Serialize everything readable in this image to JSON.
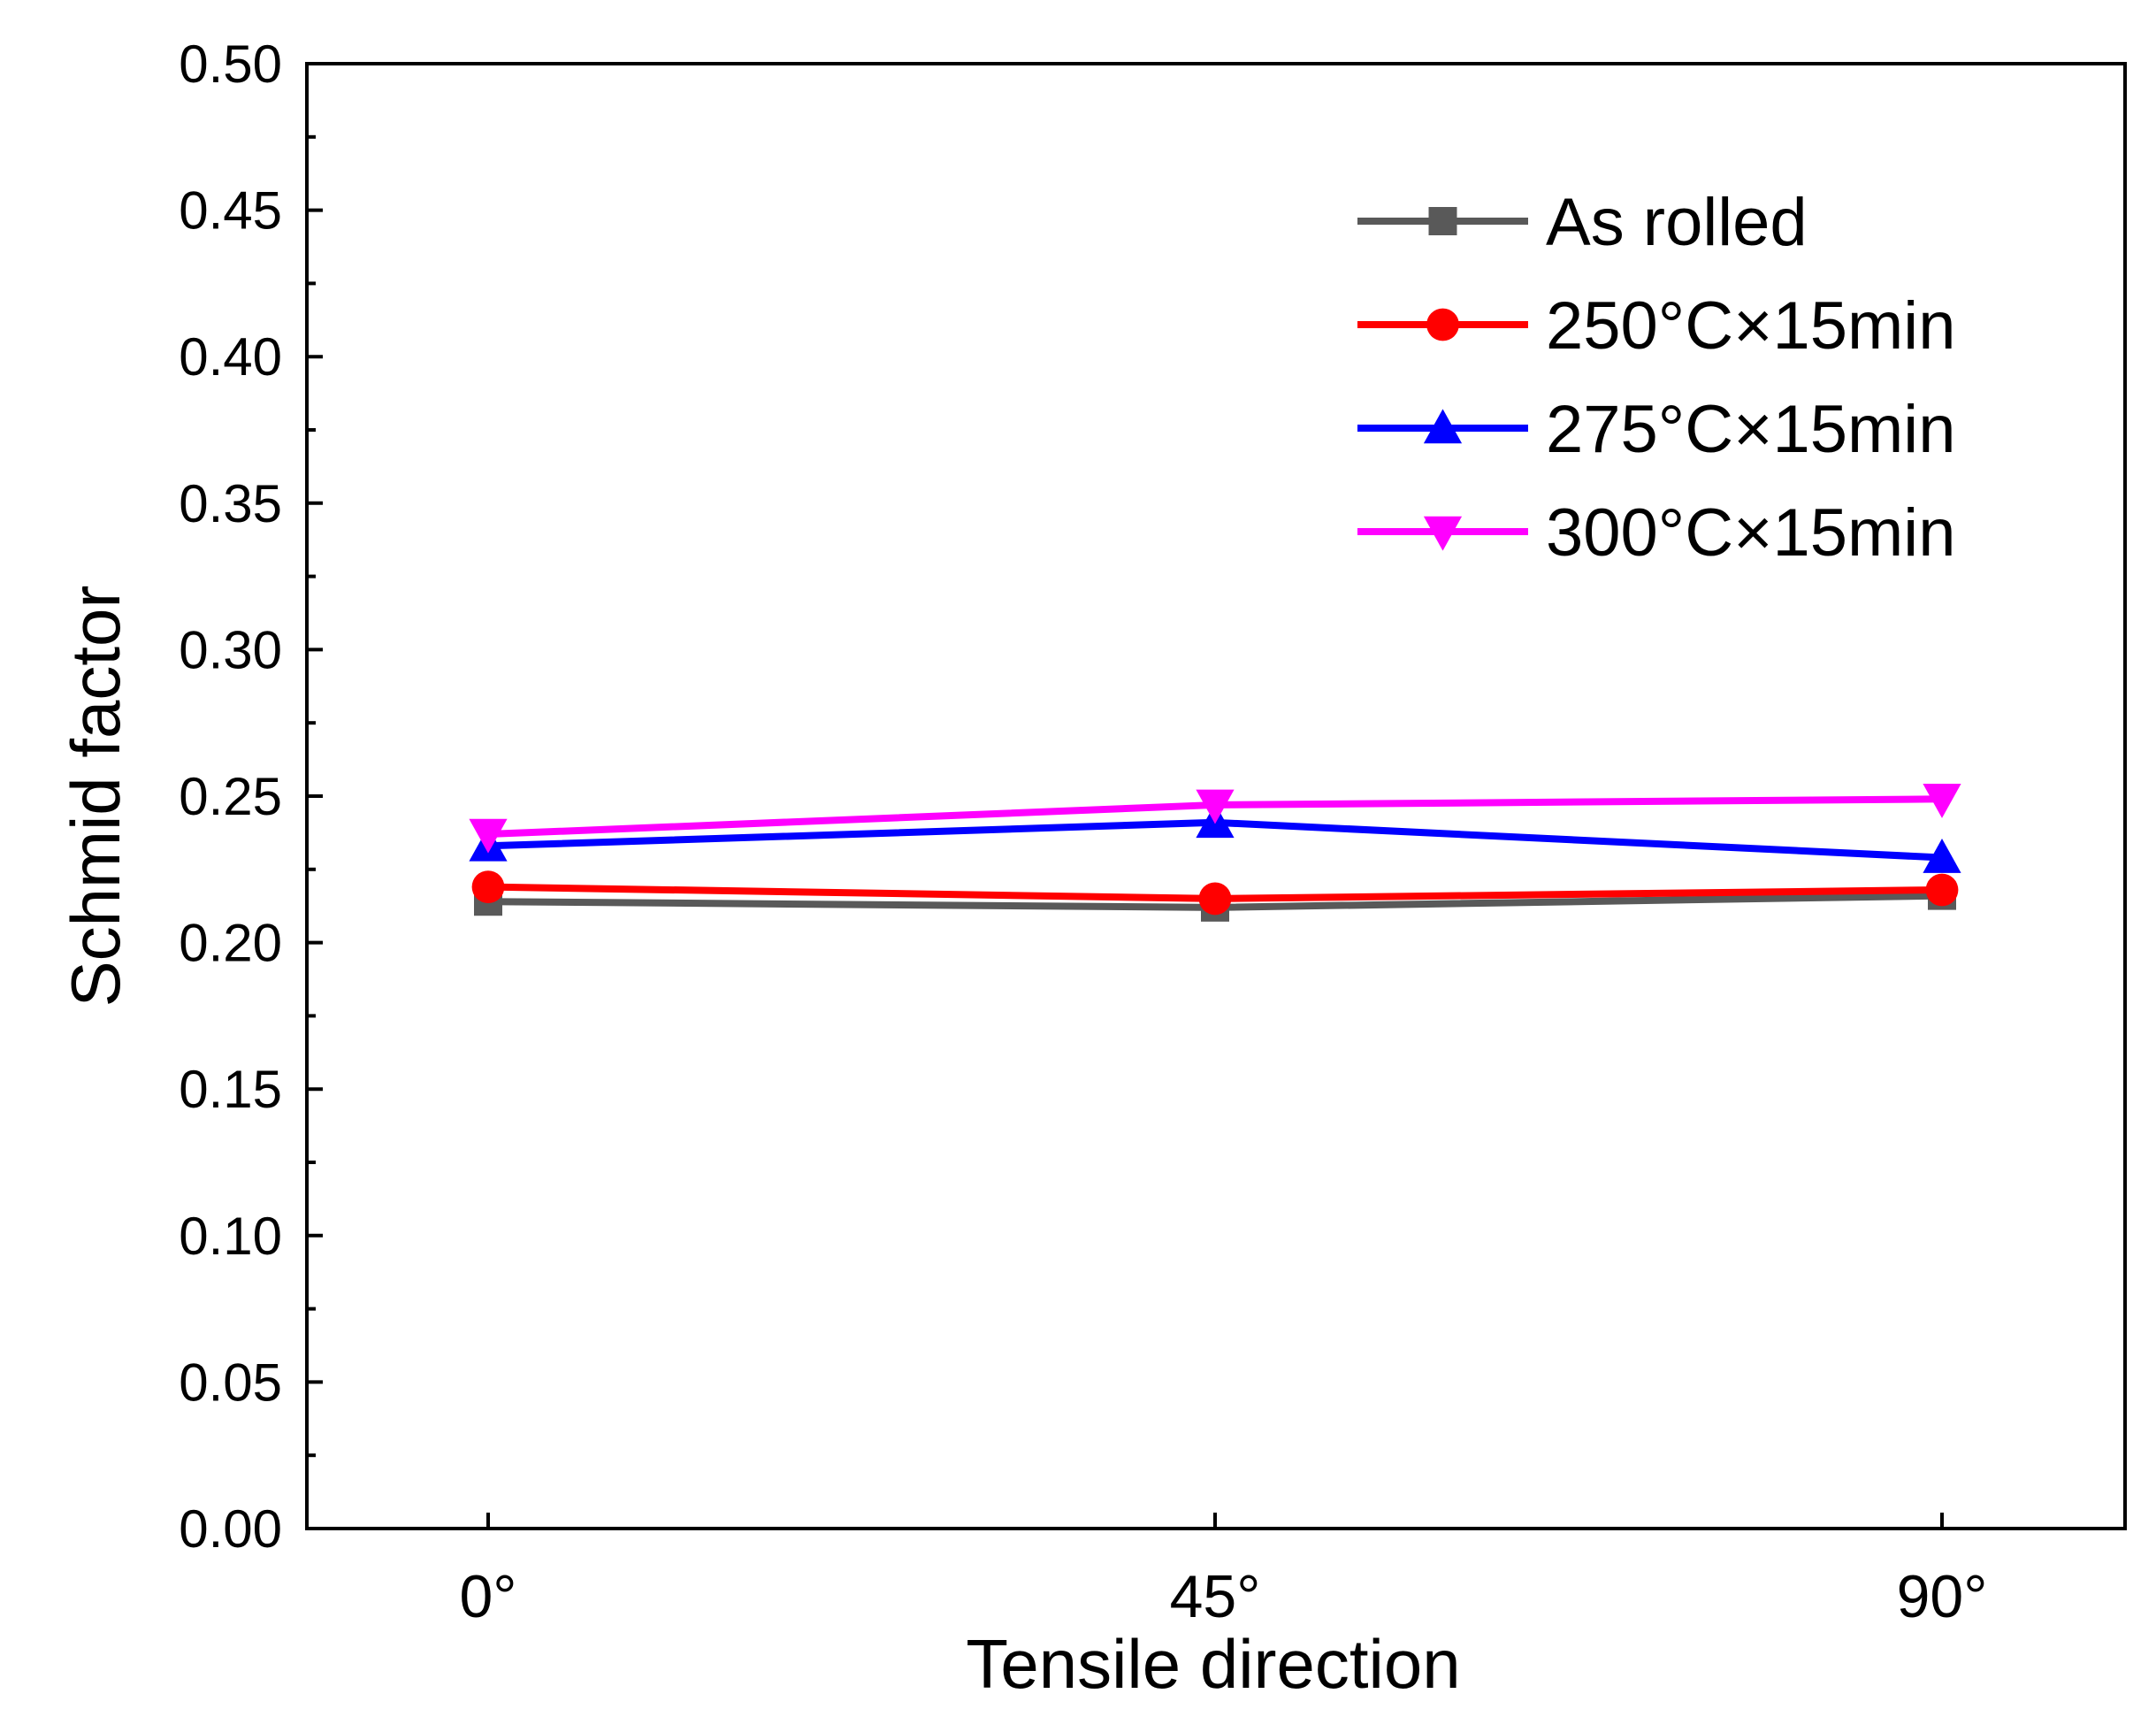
{
  "chart_data": {
    "type": "line",
    "title": "",
    "xlabel": "Tensile direction",
    "ylabel": "Schmid factor",
    "categories": [
      "0°",
      "45°",
      "90°"
    ],
    "ylim": [
      0,
      0.5
    ],
    "yticks": [
      "0.00",
      "0.05",
      "0.10",
      "0.15",
      "0.20",
      "0.25",
      "0.30",
      "0.35",
      "0.40",
      "0.45",
      "0.50"
    ],
    "legend_position": "top-right",
    "grid": false,
    "series": [
      {
        "name": "As rolled",
        "values": [
          0.214,
          0.212,
          0.216
        ],
        "color": "#595959",
        "marker": "square"
      },
      {
        "name": "250°C×15min",
        "values": [
          0.219,
          0.215,
          0.218
        ],
        "color": "#ff0000",
        "marker": "circle"
      },
      {
        "name": "275°C×15min",
        "values": [
          0.233,
          0.241,
          0.229
        ],
        "color": "#0000ff",
        "marker": "triangle-up"
      },
      {
        "name": "300°C×15min",
        "values": [
          0.237,
          0.247,
          0.249
        ],
        "color": "#ff00ff",
        "marker": "triangle-down"
      }
    ]
  }
}
